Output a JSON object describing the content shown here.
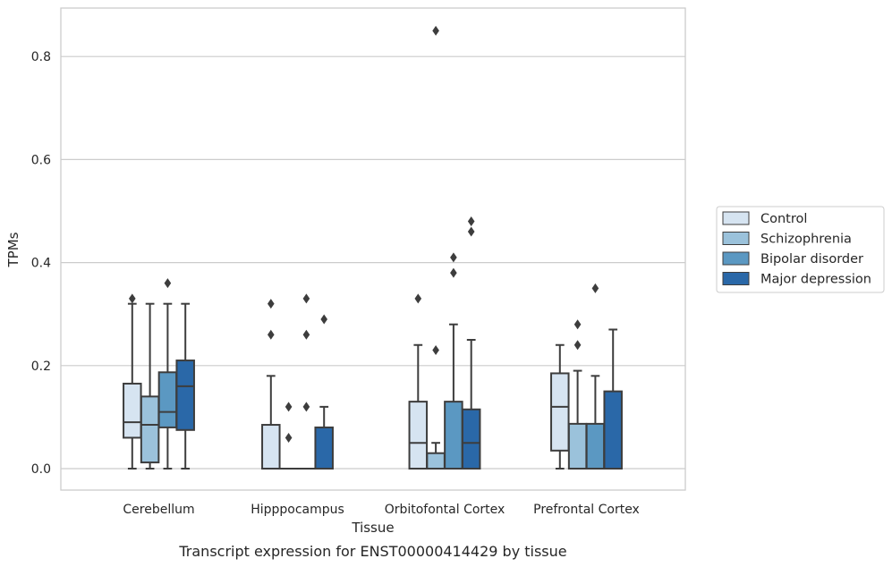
{
  "caption": "Transcript expression for ENST00000414429 by tissue",
  "chart_data": {
    "type": "box",
    "xlabel": "Tissue",
    "ylabel": "TPMs",
    "ylim": [
      -0.04,
      0.895
    ],
    "y_ticks": [
      0.0,
      0.2,
      0.4,
      0.6,
      0.8
    ],
    "y_tick_labels": [
      "0.0",
      "0.2",
      "0.4",
      "0.6",
      "0.8"
    ],
    "grid": "horizontal",
    "legend_position": "right",
    "categories": [
      "Cerebellum",
      "Hipppocampus",
      "Orbitofontal Cortex",
      "Prefrontal Cortex"
    ],
    "series": [
      {
        "name": "Control",
        "color": "#d6e4f1",
        "boxes": [
          {
            "whisker_low": 0.0,
            "q1": 0.06,
            "median": 0.09,
            "q3": 0.165,
            "whisker_high": 0.32,
            "outliers": [
              0.33
            ]
          },
          {
            "whisker_low": 0.0,
            "q1": 0.0,
            "median": 0.0,
            "q3": 0.085,
            "whisker_high": 0.18,
            "outliers": [
              0.26,
              0.32
            ]
          },
          {
            "whisker_low": 0.0,
            "q1": 0.0,
            "median": 0.05,
            "q3": 0.13,
            "whisker_high": 0.24,
            "outliers": [
              0.33
            ]
          },
          {
            "whisker_low": 0.0,
            "q1": 0.035,
            "median": 0.12,
            "q3": 0.185,
            "whisker_high": 0.24,
            "outliers": []
          }
        ]
      },
      {
        "name": "Schizophrenia",
        "color": "#9bc2db",
        "boxes": [
          {
            "whisker_low": 0.0,
            "q1": 0.012,
            "median": 0.085,
            "q3": 0.14,
            "whisker_high": 0.32,
            "outliers": []
          },
          {
            "whisker_low": 0.0,
            "q1": 0.0,
            "median": 0.0,
            "q3": 0.0,
            "whisker_high": 0.0,
            "outliers": [
              0.06,
              0.12
            ]
          },
          {
            "whisker_low": 0.0,
            "q1": 0.0,
            "median": 0.0,
            "q3": 0.03,
            "whisker_high": 0.05,
            "outliers": [
              0.23,
              0.85
            ]
          },
          {
            "whisker_low": 0.0,
            "q1": 0.0,
            "median": 0.0,
            "q3": 0.087,
            "whisker_high": 0.19,
            "outliers": [
              0.24,
              0.28
            ]
          }
        ]
      },
      {
        "name": "Bipolar disorder",
        "color": "#5b98c2",
        "boxes": [
          {
            "whisker_low": 0.0,
            "q1": 0.08,
            "median": 0.11,
            "q3": 0.187,
            "whisker_high": 0.32,
            "outliers": [
              0.36
            ]
          },
          {
            "whisker_low": 0.0,
            "q1": 0.0,
            "median": 0.0,
            "q3": 0.0,
            "whisker_high": 0.0,
            "outliers": [
              0.12,
              0.26,
              0.33
            ]
          },
          {
            "whisker_low": 0.0,
            "q1": 0.0,
            "median": 0.0,
            "q3": 0.13,
            "whisker_high": 0.28,
            "outliers": [
              0.38,
              0.41
            ]
          },
          {
            "whisker_low": 0.0,
            "q1": 0.0,
            "median": 0.0,
            "q3": 0.087,
            "whisker_high": 0.18,
            "outliers": [
              0.35
            ]
          }
        ]
      },
      {
        "name": "Major depression",
        "color": "#2a68a8",
        "boxes": [
          {
            "whisker_low": 0.0,
            "q1": 0.075,
            "median": 0.16,
            "q3": 0.21,
            "whisker_high": 0.32,
            "outliers": []
          },
          {
            "whisker_low": 0.0,
            "q1": 0.0,
            "median": 0.0,
            "q3": 0.08,
            "whisker_high": 0.12,
            "outliers": [
              0.29
            ]
          },
          {
            "whisker_low": 0.0,
            "q1": 0.0,
            "median": 0.05,
            "q3": 0.115,
            "whisker_high": 0.25,
            "outliers": [
              0.46,
              0.48
            ]
          },
          {
            "whisker_low": 0.0,
            "q1": 0.0,
            "median": 0.0,
            "q3": 0.15,
            "whisker_high": 0.27,
            "outliers": []
          }
        ]
      }
    ]
  }
}
